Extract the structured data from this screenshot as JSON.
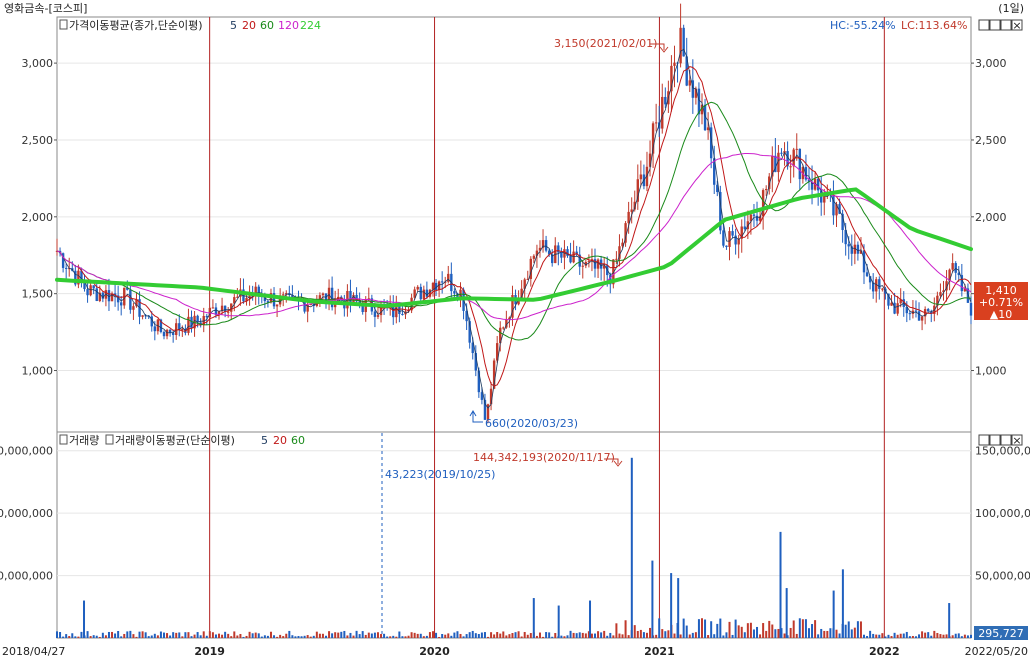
{
  "window": {
    "title": "영화금속-[코스피]",
    "period": "(1일)"
  },
  "price_panel": {
    "indicator_label": "가격이동평균(종가,단순이평)",
    "ma_periods": [
      "5",
      "20",
      "60",
      "120",
      "224"
    ],
    "hc_text": "HC:-55.24%",
    "lc_text": "LC:113.64%",
    "high_annotation": "3,150(2021/02/01)",
    "low_annotation": "660(2020/03/23)",
    "current_price": "1,410",
    "current_change_pct": "+0.71%",
    "current_change": "▲10",
    "window_buttons": [
      "□",
      "□",
      "□",
      "×"
    ]
  },
  "volume_panel": {
    "indicator_label_1": "거래량",
    "indicator_label_2": "거래량이동평균(단순이평)",
    "ma_periods": [
      "5",
      "20",
      "60"
    ],
    "peak_annotation": "144,342,193(2020/11/17)",
    "marker_annotation": "43,223(2019/10/25)",
    "current_volume": "295,727",
    "window_buttons": [
      "□",
      "□",
      "□",
      "×"
    ]
  },
  "colors": {
    "up": "#c0392b",
    "down": "#1f5fbf",
    "ma5": "#1e3a5f",
    "ma20": "#c01818",
    "ma60": "#1a8a1a",
    "ma120": "#cc22cc",
    "ma224": "#33cc33",
    "year_line": "#b22222",
    "price_badge": "#d9401f"
  },
  "chart_data": {
    "type": "line",
    "x_range": [
      "2018/04/27",
      "2022/05/20"
    ],
    "x_tick_labels": [
      "2018/04/27",
      "2019",
      "2020",
      "2021",
      "2022",
      "2022/05/20"
    ],
    "price_ylim": [
      600,
      3300
    ],
    "price_y_ticks": [
      "1,000",
      "1,500",
      "2,000",
      "2,500",
      "3,000"
    ],
    "price_y_tick_values": [
      1000,
      1500,
      2000,
      2500,
      3000
    ],
    "volume_ylim": [
      0,
      165000000
    ],
    "volume_y_ticks": [
      "50,000,000",
      "100,000,000",
      "150,000,000"
    ],
    "volume_y_tick_values": [
      50000000,
      100000000,
      150000000
    ],
    "ma_periods": [
      5,
      20,
      60,
      120,
      224
    ],
    "series": [
      {
        "name": "종가",
        "x": [
          "2018/04/27",
          "2018/06",
          "2018/08",
          "2018/10",
          "2018/12",
          "2019/01",
          "2019/03",
          "2019/05",
          "2019/07",
          "2019/09",
          "2019/10/25",
          "2019/12",
          "2020/01",
          "2020/02",
          "2020/03/23",
          "2020/04",
          "2020/06",
          "2020/08",
          "2020/10",
          "2020/11/17",
          "2020/12",
          "2021/02/01",
          "2021/03",
          "2021/04",
          "2021/06",
          "2021/07",
          "2021/08",
          "2021/10",
          "2021/12",
          "2022/01",
          "2022/03",
          "2022/04",
          "2022/05/20"
        ],
        "values": [
          1780,
          1520,
          1480,
          1250,
          1320,
          1420,
          1500,
          1430,
          1480,
          1420,
          1380,
          1530,
          1620,
          1500,
          660,
          1250,
          1800,
          1700,
          1620,
          2050,
          2400,
          3150,
          2600,
          1800,
          2100,
          2480,
          2350,
          2000,
          1550,
          1420,
          1350,
          1680,
          1410
        ]
      },
      {
        "name": "224",
        "x": [
          "2018/04/27",
          "2018/12",
          "2019/06",
          "2019/10",
          "2020/02",
          "2020/06",
          "2020/10",
          "2021/01",
          "2021/04",
          "2021/08",
          "2021/11",
          "2022/02",
          "2022/05/20"
        ],
        "values": [
          1590,
          1540,
          1450,
          1420,
          1470,
          1460,
          1580,
          1680,
          1980,
          2120,
          2180,
          1920,
          1790
        ]
      }
    ],
    "volume_peak": {
      "date": "2020/11/17",
      "value": 144342193
    },
    "volume_marker": {
      "date": "2019/10/25",
      "value": 43223
    },
    "current_volume": 295727
  }
}
